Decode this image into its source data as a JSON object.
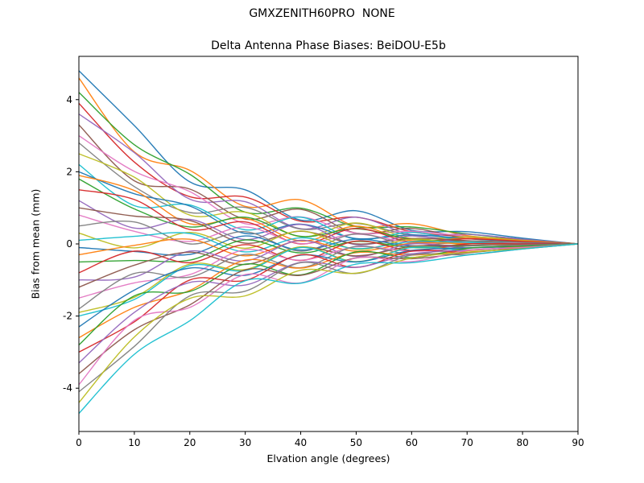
{
  "figure": {
    "background": "#ffffff",
    "frame_color": "#000000"
  },
  "chart_data": {
    "type": "line",
    "suptitle": "GMXZENITH60PRO  NONE",
    "title": "Delta Antenna Phase Biases: BeiDOU-E5b",
    "xlabel": "Elvation angle (degrees)",
    "ylabel": "Bias from mean (mm)",
    "xlim": [
      0,
      90
    ],
    "ylim": [
      -5.2,
      5.2
    ],
    "xticks": [
      0,
      10,
      20,
      30,
      40,
      50,
      60,
      70,
      80,
      90
    ],
    "yticks": [
      -4,
      -2,
      0,
      2,
      4
    ],
    "grid": false,
    "legend": "none",
    "x": [
      0,
      10,
      20,
      30,
      40,
      50,
      60,
      70,
      80,
      90
    ],
    "palette": [
      "#1f77b4",
      "#ff7f0e",
      "#2ca02c",
      "#d62728",
      "#9467bd",
      "#8c564b",
      "#e377c2",
      "#7f7f7f",
      "#bcbd22",
      "#17becf"
    ],
    "series": [
      [
        4.8,
        3.28,
        1.72,
        1.5,
        0.66,
        0.92,
        0.38,
        0.34,
        0.16,
        0
      ],
      [
        4.6,
        2.55,
        2.04,
        1.04,
        1.22,
        0.49,
        0.56,
        0.23,
        0.12,
        0
      ],
      [
        4.2,
        2.75,
        1.93,
        0.88,
        0.99,
        0.48,
        0.47,
        0.28,
        0.13,
        0
      ],
      [
        3.9,
        2.27,
        1.31,
        1.3,
        0.63,
        0.74,
        0.34,
        0.2,
        0.12,
        0
      ],
      [
        3.6,
        2.53,
        1.24,
        1.17,
        0.42,
        0.74,
        0.26,
        0.27,
        0.13,
        0
      ],
      [
        3.3,
        1.75,
        1.52,
        0.69,
        0.96,
        0.3,
        0.43,
        0.15,
        0.08,
        0
      ],
      [
        3.0,
        2.01,
        1.45,
        0.56,
        0.75,
        0.3,
        0.35,
        0.21,
        0.09,
        0
      ],
      [
        2.8,
        1.59,
        0.87,
        1.01,
        0.41,
        0.57,
        0.23,
        0.14,
        0.08,
        0
      ],
      [
        2.5,
        1.85,
        0.8,
        0.88,
        0.2,
        0.58,
        0.15,
        0.2,
        0.1,
        0
      ],
      [
        2.2,
        1.06,
        1.08,
        0.39,
        0.74,
        0.13,
        0.32,
        0.08,
        0.05,
        0
      ],
      [
        2.0,
        1.39,
        1.05,
        0.29,
        0.55,
        0.15,
        0.25,
        0.15,
        0.06,
        0
      ],
      [
        1.9,
        1.48,
        0.56,
        0.71,
        0.08,
        0.49,
        0.09,
        0.16,
        0.08,
        0
      ],
      [
        1.8,
        0.97,
        0.47,
        0.74,
        0.21,
        0.42,
        0.13,
        0.08,
        0.05,
        0
      ],
      [
        1.5,
        1.23,
        0.4,
        0.61,
        0.0,
        0.43,
        0.05,
        0.14,
        0.07,
        0
      ],
      [
        1.2,
        0.44,
        0.68,
        0.12,
        0.54,
        -0.02,
        0.22,
        0.02,
        0.02,
        0
      ],
      [
        1.0,
        0.77,
        0.65,
        0.02,
        0.35,
        0.0,
        0.15,
        0.09,
        0.03,
        0
      ],
      [
        0.8,
        0.35,
        0.07,
        0.47,
        0.01,
        0.27,
        0.03,
        0.02,
        0.02,
        0
      ],
      [
        0.5,
        0.61,
        0.0,
        0.34,
        -0.2,
        0.28,
        -0.05,
        0.08,
        0.04,
        0
      ],
      [
        0.3,
        -0.11,
        0.32,
        -0.12,
        0.36,
        -0.15,
        0.13,
        -0.03,
        -0.01,
        0
      ],
      [
        0.1,
        0.21,
        0.29,
        -0.22,
        0.17,
        -0.13,
        0.06,
        0.04,
        0.0,
        0
      ],
      [
        -0.1,
        -0.21,
        -0.29,
        0.22,
        -0.17,
        0.13,
        -0.06,
        -0.04,
        0.0,
        0
      ],
      [
        -0.3,
        -0.04,
        0.13,
        -0.33,
        0.09,
        -0.2,
        0.02,
        0.01,
        -0.01,
        0
      ],
      [
        -0.5,
        -0.46,
        -0.45,
        0.11,
        -0.25,
        0.07,
        -0.1,
        -0.06,
        -0.02,
        0
      ],
      [
        -0.8,
        -0.2,
        -0.52,
        -0.02,
        -0.46,
        0.08,
        -0.18,
        0.0,
        0.0,
        0
      ],
      [
        -1.0,
        -0.92,
        -0.2,
        -0.47,
        0.1,
        -0.35,
        0.0,
        -0.11,
        -0.05,
        0
      ],
      [
        -1.2,
        -0.59,
        -0.23,
        -0.57,
        -0.09,
        -0.33,
        -0.07,
        -0.04,
        -0.04,
        0
      ],
      [
        -1.5,
        -1.08,
        -0.85,
        -0.16,
        -0.45,
        -0.08,
        -0.2,
        -0.12,
        -0.05,
        0
      ],
      [
        -1.8,
        -0.82,
        -0.92,
        -0.29,
        -0.66,
        -0.07,
        -0.28,
        -0.06,
        -0.03,
        0
      ],
      [
        -1.9,
        -1.48,
        -0.56,
        -0.71,
        -0.08,
        -0.49,
        -0.09,
        -0.16,
        -0.08,
        0
      ],
      [
        -2.0,
        -1.54,
        -0.6,
        -0.74,
        -0.1,
        -0.5,
        -0.1,
        -0.17,
        -0.08,
        0
      ],
      [
        -2.3,
        -1.28,
        -0.67,
        -0.87,
        -0.31,
        -0.5,
        -0.18,
        -0.11,
        -0.07,
        0
      ],
      [
        -2.6,
        -1.76,
        -1.29,
        -0.45,
        -0.67,
        -0.24,
        -0.31,
        -0.19,
        -0.08,
        0
      ],
      [
        -2.8,
        -1.44,
        -1.32,
        -0.56,
        -0.86,
        -0.22,
        -0.38,
        -0.12,
        -0.06,
        0
      ],
      [
        -3.0,
        -2.16,
        -1.0,
        -1.01,
        -0.3,
        -0.65,
        -0.2,
        -0.23,
        -0.11,
        0
      ],
      [
        -3.3,
        -1.9,
        -1.07,
        -1.14,
        -0.51,
        -0.65,
        -0.28,
        -0.17,
        -0.1,
        0
      ],
      [
        -3.6,
        -2.38,
        -1.69,
        -0.72,
        -0.87,
        -0.39,
        -0.41,
        -0.25,
        -0.11,
        0
      ],
      [
        -3.9,
        -2.12,
        -1.76,
        -0.85,
        -1.08,
        -0.39,
        -0.49,
        -0.18,
        -0.1,
        0
      ],
      [
        -4.1,
        -2.84,
        -1.44,
        -1.31,
        -0.52,
        -0.82,
        -0.31,
        -0.3,
        -0.14,
        0
      ],
      [
        -4.4,
        -2.58,
        -1.51,
        -1.44,
        -0.73,
        -0.81,
        -0.39,
        -0.23,
        -0.13,
        0
      ],
      [
        -4.7,
        -3.06,
        -2.13,
        -1.02,
        -1.09,
        -0.56,
        -0.52,
        -0.31,
        -0.14,
        0
      ]
    ]
  }
}
